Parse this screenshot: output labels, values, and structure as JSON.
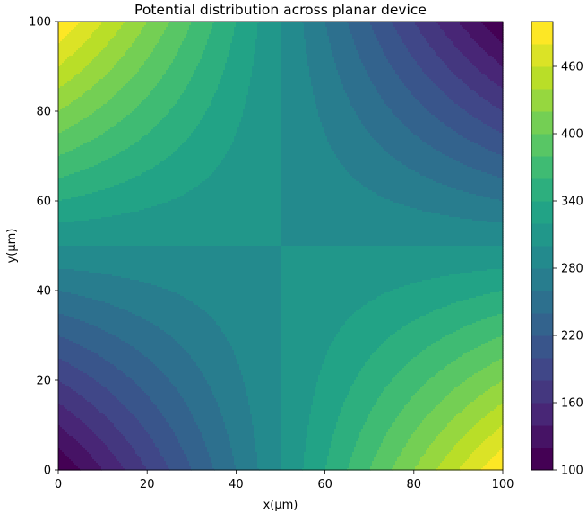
{
  "chart_data": {
    "type": "heatmap",
    "subtype": "filled-contour",
    "title": "Potential distribution across planar device",
    "xlabel": "x(μm)",
    "ylabel": "y(μm)",
    "xlim": [
      0,
      100
    ],
    "ylim": [
      0,
      100
    ],
    "xticks": [
      0,
      20,
      40,
      60,
      80,
      100
    ],
    "yticks": [
      0,
      20,
      40,
      60,
      80,
      100
    ],
    "colorbar": {
      "ticks": [
        100,
        160,
        220,
        280,
        340,
        400,
        460
      ],
      "levels": [
        100,
        120,
        140,
        160,
        180,
        200,
        220,
        240,
        260,
        280,
        300,
        320,
        340,
        360,
        380,
        400,
        420,
        440,
        460,
        480,
        500
      ],
      "colormap": "viridis"
    },
    "field": {
      "center_value": 300,
      "amplitude": 200,
      "form": "300 - 200 * ((x-50)/50) * ((y-50)/50)",
      "corner_values": {
        "x0_y0": 100,
        "x100_y0": 500,
        "x0_y100": 500,
        "x100_y100": 100
      }
    },
    "grid": false
  },
  "labels": {
    "title": "Potential distribution across planar device",
    "xlabel": "x(μm)",
    "ylabel": "y(μm)"
  }
}
